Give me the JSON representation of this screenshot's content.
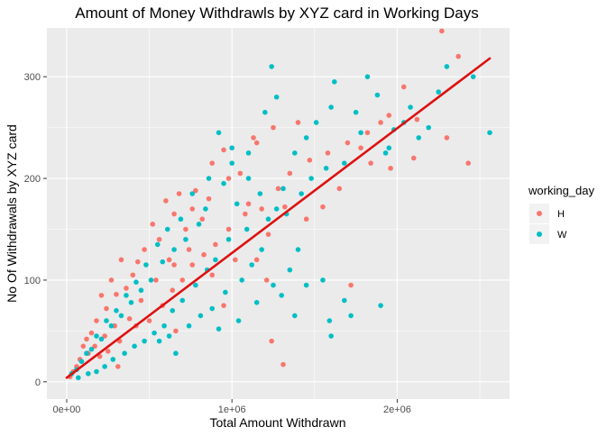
{
  "chart_data": {
    "type": "scatter",
    "title": "Amount of Money Withdrawls by XYZ card in Working Days",
    "xlabel": "Total Amount Withdrawn",
    "ylabel": "No Of Withdrawals by XYZ card",
    "xlim": [
      -120000,
      2680000
    ],
    "ylim": [
      -17,
      348
    ],
    "x_ticks": [
      0,
      1000000,
      2000000
    ],
    "x_tick_labels": [
      "0e+00",
      "1e+06",
      "2e+06"
    ],
    "y_ticks": [
      0,
      100,
      200,
      300
    ],
    "y_tick_labels": [
      "0",
      "100",
      "200",
      "300"
    ],
    "grid": true,
    "legend": {
      "title": "working_day",
      "position": "right",
      "entries": [
        {
          "label": "H",
          "color": "#F8766D"
        },
        {
          "label": "W",
          "color": "#00BFC4"
        }
      ]
    },
    "colors": {
      "panel_background": "#EBEBEB",
      "grid_major": "#FFFFFF",
      "H": "#F8766D",
      "W": "#00BFC4",
      "trend_line": "#DD1111"
    },
    "trend_line": {
      "x": [
        0,
        2560000
      ],
      "y": [
        4,
        318
      ]
    },
    "series": [
      {
        "name": "H",
        "color": "#F8766D",
        "points": [
          [
            2270000,
            345
          ],
          [
            2370000,
            320
          ],
          [
            2300000,
            240
          ],
          [
            2430000,
            215
          ],
          [
            2120000,
            258
          ],
          [
            2040000,
            290
          ],
          [
            1900000,
            255
          ],
          [
            1780000,
            230
          ],
          [
            1650000,
            190
          ],
          [
            1550000,
            172
          ],
          [
            1450000,
            160
          ],
          [
            1400000,
            255
          ],
          [
            1250000,
            250
          ],
          [
            1150000,
            235
          ],
          [
            1100000,
            175
          ],
          [
            1050000,
            205
          ],
          [
            950000,
            228
          ],
          [
            880000,
            215
          ],
          [
            780000,
            188
          ],
          [
            760000,
            170
          ],
          [
            820000,
            160
          ],
          [
            720000,
            150
          ],
          [
            680000,
            185
          ],
          [
            650000,
            165
          ],
          [
            600000,
            178
          ],
          [
            560000,
            140
          ],
          [
            520000,
            155
          ],
          [
            470000,
            130
          ],
          [
            430000,
            118
          ],
          [
            400000,
            105
          ],
          [
            360000,
            92
          ],
          [
            330000,
            120
          ],
          [
            300000,
            86
          ],
          [
            270000,
            100
          ],
          [
            240000,
            72
          ],
          [
            210000,
            85
          ],
          [
            180000,
            60
          ],
          [
            150000,
            48
          ],
          [
            120000,
            42
          ],
          [
            100000,
            35
          ],
          [
            80000,
            22
          ],
          [
            60000,
            15
          ],
          [
            40000,
            10
          ],
          [
            20000,
            5
          ],
          [
            320000,
            40
          ],
          [
            250000,
            30
          ],
          [
            200000,
            25
          ],
          [
            310000,
            15
          ],
          [
            420000,
            55
          ],
          [
            500000,
            60
          ],
          [
            580000,
            75
          ],
          [
            640000,
            90
          ],
          [
            700000,
            100
          ],
          [
            760000,
            115
          ],
          [
            830000,
            125
          ],
          [
            900000,
            135
          ],
          [
            980000,
            150
          ],
          [
            1080000,
            165
          ],
          [
            1180000,
            170
          ],
          [
            1280000,
            190
          ],
          [
            1350000,
            205
          ],
          [
            1470000,
            218
          ],
          [
            1580000,
            225
          ],
          [
            1700000,
            235
          ],
          [
            1820000,
            245
          ],
          [
            1950000,
            262
          ],
          [
            1720000,
            95
          ],
          [
            1960000,
            210
          ],
          [
            1320000,
            172
          ],
          [
            1220000,
            145
          ],
          [
            1020000,
            120
          ],
          [
            880000,
            105
          ],
          [
            650000,
            115
          ],
          [
            540000,
            100
          ],
          [
            450000,
            80
          ],
          [
            380000,
            62
          ],
          [
            290000,
            55
          ],
          [
            230000,
            45
          ],
          [
            170000,
            35
          ],
          [
            130000,
            28
          ],
          [
            1240000,
            40
          ],
          [
            1310000,
            17
          ],
          [
            2100000,
            220
          ],
          [
            1840000,
            215
          ],
          [
            1130000,
            240
          ],
          [
            980000,
            200
          ],
          [
            860000,
            180
          ],
          [
            740000,
            130
          ],
          [
            620000,
            120
          ],
          [
            1150000,
            120
          ],
          [
            1210000,
            100
          ],
          [
            950000,
            75
          ],
          [
            660000,
            50
          ]
        ]
      },
      {
        "name": "W",
        "color": "#00BFC4",
        "points": [
          [
            2560000,
            245
          ],
          [
            2460000,
            300
          ],
          [
            2300000,
            310
          ],
          [
            2250000,
            285
          ],
          [
            2130000,
            240
          ],
          [
            2080000,
            270
          ],
          [
            1950000,
            230
          ],
          [
            1880000,
            282
          ],
          [
            1820000,
            300
          ],
          [
            1750000,
            265
          ],
          [
            1620000,
            295
          ],
          [
            1510000,
            255
          ],
          [
            1380000,
            225
          ],
          [
            1310000,
            190
          ],
          [
            1270000,
            170
          ],
          [
            1240000,
            310
          ],
          [
            1200000,
            265
          ],
          [
            1100000,
            225
          ],
          [
            1000000,
            215
          ],
          [
            950000,
            195
          ],
          [
            920000,
            245
          ],
          [
            860000,
            200
          ],
          [
            840000,
            170
          ],
          [
            800000,
            155
          ],
          [
            760000,
            185
          ],
          [
            720000,
            140
          ],
          [
            690000,
            160
          ],
          [
            650000,
            130
          ],
          [
            610000,
            150
          ],
          [
            580000,
            118
          ],
          [
            550000,
            135
          ],
          [
            510000,
            100
          ],
          [
            480000,
            115
          ],
          [
            450000,
            90
          ],
          [
            420000,
            98
          ],
          [
            390000,
            78
          ],
          [
            360000,
            85
          ],
          [
            330000,
            65
          ],
          [
            300000,
            70
          ],
          [
            270000,
            55
          ],
          [
            240000,
            60
          ],
          [
            210000,
            42
          ],
          [
            180000,
            45
          ],
          [
            150000,
            32
          ],
          [
            120000,
            28
          ],
          [
            90000,
            20
          ],
          [
            60000,
            12
          ],
          [
            30000,
            8
          ],
          [
            1900000,
            75
          ],
          [
            1720000,
            65
          ],
          [
            1680000,
            80
          ],
          [
            1600000,
            45
          ],
          [
            1550000,
            100
          ],
          [
            1450000,
            95
          ],
          [
            1400000,
            130
          ],
          [
            1350000,
            110
          ],
          [
            1220000,
            160
          ],
          [
            1170000,
            185
          ],
          [
            1090000,
            150
          ],
          [
            1030000,
            175
          ],
          [
            980000,
            140
          ],
          [
            900000,
            120
          ],
          [
            850000,
            110
          ],
          [
            780000,
            95
          ],
          [
            700000,
            80
          ],
          [
            640000,
            70
          ],
          [
            590000,
            55
          ],
          [
            530000,
            48
          ],
          [
            470000,
            40
          ],
          [
            410000,
            35
          ],
          [
            350000,
            28
          ],
          [
            280000,
            22
          ],
          [
            230000,
            15
          ],
          [
            180000,
            10
          ],
          [
            130000,
            8
          ],
          [
            70000,
            4
          ],
          [
            2190000,
            250
          ],
          [
            2040000,
            255
          ],
          [
            1980000,
            248
          ],
          [
            1930000,
            225
          ],
          [
            1680000,
            215
          ],
          [
            1570000,
            210
          ],
          [
            1480000,
            200
          ],
          [
            1420000,
            185
          ],
          [
            1330000,
            165
          ],
          [
            1180000,
            130
          ],
          [
            1120000,
            115
          ],
          [
            1060000,
            100
          ],
          [
            960000,
            88
          ],
          [
            880000,
            72
          ],
          [
            810000,
            65
          ],
          [
            740000,
            55
          ],
          [
            620000,
            45
          ],
          [
            560000,
            40
          ],
          [
            1250000,
            95
          ],
          [
            1300000,
            85
          ],
          [
            1380000,
            65
          ],
          [
            1150000,
            78
          ],
          [
            1040000,
            60
          ],
          [
            920000,
            52
          ],
          [
            660000,
            28
          ],
          [
            1590000,
            60
          ],
          [
            1100000,
            200
          ],
          [
            1000000,
            230
          ],
          [
            1270000,
            280
          ],
          [
            1450000,
            240
          ],
          [
            1600000,
            270
          ],
          [
            1780000,
            245
          ]
        ]
      }
    ]
  }
}
